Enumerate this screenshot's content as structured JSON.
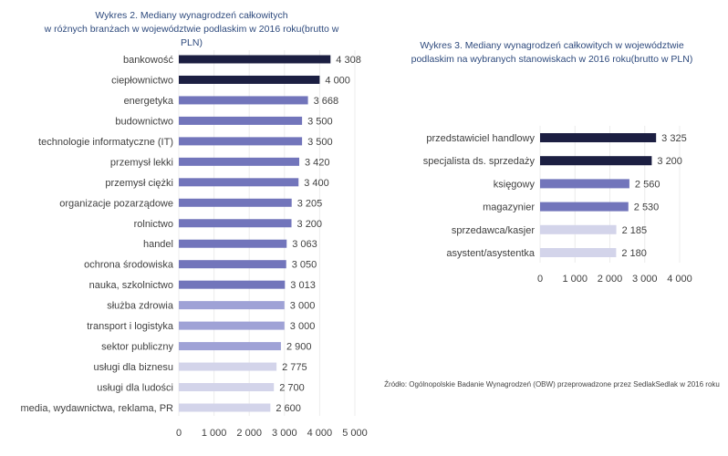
{
  "chart_data": [
    {
      "type": "bar",
      "orientation": "horizontal",
      "title_line1": "Wykres 2. Mediany wynagrodzeń całkowitych",
      "title_line2": "w różnych branżach w województwie podlaskim w 2016 roku(brutto w PLN)",
      "categories": [
        "bankowość",
        "ciepłownictwo",
        "energetyka",
        "budownictwo",
        "technologie informatyczne (IT)",
        "przemysł lekki",
        "przemysł ciężki",
        "organizacje pozarządowe",
        "rolnictwo",
        "handel",
        "ochrona środowiska",
        "nauka, szkolnictwo",
        "służba zdrowia",
        "transport i logistyka",
        "sektor publiczny",
        "usługi dla biznesu",
        "usługi dla ludości",
        "media, wydawnictwa, reklama, PR"
      ],
      "values": [
        4308,
        4000,
        3668,
        3500,
        3500,
        3420,
        3400,
        3205,
        3200,
        3063,
        3050,
        3013,
        3000,
        3000,
        2900,
        2775,
        2700,
        2600
      ],
      "value_labels": [
        "4 308",
        "4 000",
        "3 668",
        "3 500",
        "3 500",
        "3 420",
        "3 400",
        "3 205",
        "3 200",
        "3 063",
        "3 050",
        "3 013",
        "3 000",
        "3 000",
        "2 900",
        "2 775",
        "2 700",
        "2 600"
      ],
      "colors": [
        "#1c1f42",
        "#1c1f42",
        "#7275bb",
        "#7275bb",
        "#7275bb",
        "#7275bb",
        "#7275bb",
        "#7275bb",
        "#7275bb",
        "#7275bb",
        "#7275bb",
        "#7275bb",
        "#9fa2d6",
        "#9fa2d6",
        "#9fa2d6",
        "#d3d4ea",
        "#d3d4ea",
        "#d3d4ea"
      ],
      "xlim": [
        0,
        5000
      ],
      "xticks": [
        0,
        1000,
        2000,
        3000,
        4000,
        5000
      ],
      "xtick_labels": [
        "0",
        "1 000",
        "2 000",
        "3 000",
        "4 000",
        "5 000"
      ],
      "grid": true
    },
    {
      "type": "bar",
      "orientation": "horizontal",
      "title_line1": "Wykres 3. Mediany wynagrodzeń całkowitych  w województwie",
      "title_line2": "podlaskim na wybranych stanowiskach w 2016 roku(brutto w PLN)",
      "categories": [
        "przedstawiciel handlowy",
        "specjalista ds. sprzedaży",
        "księgowy",
        "magazynier",
        "sprzedawca/kasjer",
        "asystent/asystentka"
      ],
      "values": [
        3325,
        3200,
        2560,
        2530,
        2185,
        2180
      ],
      "value_labels": [
        "3 325",
        "3 200",
        "2 560",
        "2 530",
        "2 185",
        "2 180"
      ],
      "colors": [
        "#1c1f42",
        "#1c1f42",
        "#7275bb",
        "#7275bb",
        "#d3d4ea",
        "#d3d4ea"
      ],
      "xlim": [
        0,
        4000
      ],
      "xticks": [
        0,
        1000,
        2000,
        3000,
        4000
      ],
      "xtick_labels": [
        "0",
        "1 000",
        "2 000",
        "3 000",
        "4 000"
      ],
      "grid": true
    }
  ],
  "source": "Źródło: Ogólnopolskie Badanie Wynagrodzeń (OBW) przeprowadzone przez SedlakSedlak w 2016 roku"
}
